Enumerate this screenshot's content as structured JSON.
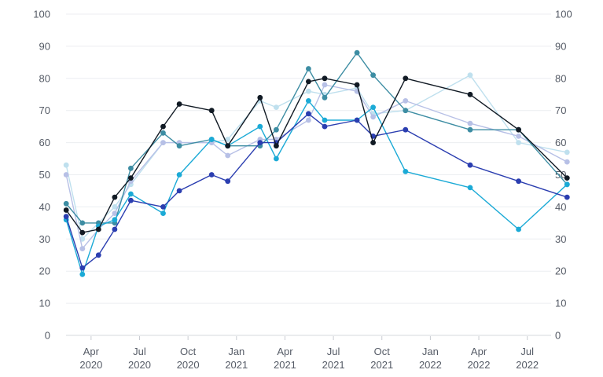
{
  "chart_data": {
    "type": "line",
    "title": "",
    "xlabel": "",
    "ylabel": "",
    "ylim": [
      0,
      100
    ],
    "y_ticks": [
      0,
      10,
      20,
      30,
      40,
      50,
      60,
      70,
      80,
      90,
      100
    ],
    "secondary_y_axis": true,
    "grid": "horizontal",
    "legend": "none",
    "x_tick_labels": [
      {
        "month": "Apr",
        "year": "2020"
      },
      {
        "month": "Jul",
        "year": "2020"
      },
      {
        "month": "Oct",
        "year": "2020"
      },
      {
        "month": "Jan",
        "year": "2021"
      },
      {
        "month": "Apr",
        "year": "2021"
      },
      {
        "month": "Jul",
        "year": "2021"
      },
      {
        "month": "Oct",
        "year": "2021"
      },
      {
        "month": "Jan",
        "year": "2022"
      },
      {
        "month": "Apr",
        "year": "2022"
      },
      {
        "month": "Jul",
        "year": "2022"
      }
    ],
    "series": [
      {
        "color": "#bfe0ee",
        "points": [
          [
            "2020-02-15",
            53
          ],
          [
            "2020-03-15",
            30
          ],
          [
            "2020-04-15",
            35
          ],
          [
            "2020-05-15",
            40
          ],
          [
            "2020-06-15",
            47
          ],
          [
            "2020-08-15",
            60
          ],
          [
            "2020-09-15",
            60
          ],
          [
            "2020-11-15",
            60
          ],
          [
            "2020-12-15",
            61
          ],
          [
            "2021-02-15",
            73
          ],
          [
            "2021-03-15",
            71
          ],
          [
            "2021-05-15",
            76
          ],
          [
            "2021-06-15",
            75
          ],
          [
            "2021-08-15",
            77
          ],
          [
            "2021-09-15",
            69
          ],
          [
            "2021-11-15",
            70
          ],
          [
            "2022-03-15",
            81
          ],
          [
            "2022-06-15",
            60
          ],
          [
            "2022-09-15",
            57
          ]
        ]
      },
      {
        "color": "#b7c0e6",
        "points": [
          [
            "2020-02-15",
            50
          ],
          [
            "2020-03-15",
            27
          ],
          [
            "2020-04-15",
            33
          ],
          [
            "2020-05-15",
            38
          ],
          [
            "2020-06-15",
            48
          ],
          [
            "2020-08-15",
            60
          ],
          [
            "2020-09-15",
            60
          ],
          [
            "2020-11-15",
            60
          ],
          [
            "2020-12-15",
            56
          ],
          [
            "2021-02-15",
            61
          ],
          [
            "2021-03-15",
            61
          ],
          [
            "2021-05-15",
            67
          ],
          [
            "2021-06-15",
            78
          ],
          [
            "2021-08-15",
            76
          ],
          [
            "2021-09-15",
            68
          ],
          [
            "2021-11-15",
            73
          ],
          [
            "2022-03-15",
            66
          ],
          [
            "2022-06-15",
            62
          ],
          [
            "2022-09-15",
            54
          ]
        ]
      },
      {
        "color": "#3d8da3",
        "points": [
          [
            "2020-02-15",
            41
          ],
          [
            "2020-03-15",
            35
          ],
          [
            "2020-04-15",
            35
          ],
          [
            "2020-05-15",
            35
          ],
          [
            "2020-06-15",
            52
          ],
          [
            "2020-08-15",
            63
          ],
          [
            "2020-09-15",
            59
          ],
          [
            "2020-11-15",
            61
          ],
          [
            "2020-12-15",
            59
          ],
          [
            "2021-02-15",
            59
          ],
          [
            "2021-03-15",
            64
          ],
          [
            "2021-05-15",
            83
          ],
          [
            "2021-06-15",
            74
          ],
          [
            "2021-08-15",
            88
          ],
          [
            "2021-09-15",
            81
          ],
          [
            "2021-11-15",
            70
          ],
          [
            "2022-03-15",
            64
          ],
          [
            "2022-06-15",
            64
          ],
          [
            "2022-09-15",
            47
          ]
        ]
      },
      {
        "color": "#1baad6",
        "points": [
          [
            "2020-02-15",
            36
          ],
          [
            "2020-03-15",
            19
          ],
          [
            "2020-04-15",
            34
          ],
          [
            "2020-05-15",
            36
          ],
          [
            "2020-06-15",
            44
          ],
          [
            "2020-08-15",
            38
          ],
          [
            "2020-09-15",
            50
          ],
          [
            "2020-11-15",
            61
          ],
          [
            "2020-12-15",
            59
          ],
          [
            "2021-02-15",
            65
          ],
          [
            "2021-03-15",
            55
          ],
          [
            "2021-05-15",
            73
          ],
          [
            "2021-06-15",
            67
          ],
          [
            "2021-08-15",
            67
          ],
          [
            "2021-09-15",
            71
          ],
          [
            "2021-11-15",
            51
          ],
          [
            "2022-03-15",
            46
          ],
          [
            "2022-06-15",
            33
          ],
          [
            "2022-09-15",
            47
          ]
        ]
      },
      {
        "color": "#2b3eb0",
        "points": [
          [
            "2020-02-15",
            37
          ],
          [
            "2020-03-15",
            21
          ],
          [
            "2020-04-15",
            25
          ],
          [
            "2020-05-15",
            33
          ],
          [
            "2020-06-15",
            42
          ],
          [
            "2020-08-15",
            40
          ],
          [
            "2020-09-15",
            45
          ],
          [
            "2020-11-15",
            50
          ],
          [
            "2020-12-15",
            48
          ],
          [
            "2021-02-15",
            60
          ],
          [
            "2021-03-15",
            60
          ],
          [
            "2021-05-15",
            69
          ],
          [
            "2021-06-15",
            65
          ],
          [
            "2021-08-15",
            67
          ],
          [
            "2021-09-15",
            62
          ],
          [
            "2021-11-15",
            64
          ],
          [
            "2022-03-15",
            53
          ],
          [
            "2022-06-15",
            48
          ],
          [
            "2022-09-15",
            43
          ]
        ]
      },
      {
        "color": "#111a24",
        "points": [
          [
            "2020-02-15",
            39
          ],
          [
            "2020-03-15",
            32
          ],
          [
            "2020-04-15",
            33
          ],
          [
            "2020-05-15",
            43
          ],
          [
            "2020-06-15",
            49
          ],
          [
            "2020-08-15",
            65
          ],
          [
            "2020-09-15",
            72
          ],
          [
            "2020-11-15",
            70
          ],
          [
            "2020-12-15",
            59
          ],
          [
            "2021-02-15",
            74
          ],
          [
            "2021-03-15",
            59
          ],
          [
            "2021-05-15",
            79
          ],
          [
            "2021-06-15",
            80
          ],
          [
            "2021-08-15",
            78
          ],
          [
            "2021-09-15",
            60
          ],
          [
            "2021-11-15",
            80
          ],
          [
            "2022-03-15",
            75
          ],
          [
            "2022-06-15",
            64
          ],
          [
            "2022-09-15",
            49
          ]
        ]
      }
    ]
  }
}
